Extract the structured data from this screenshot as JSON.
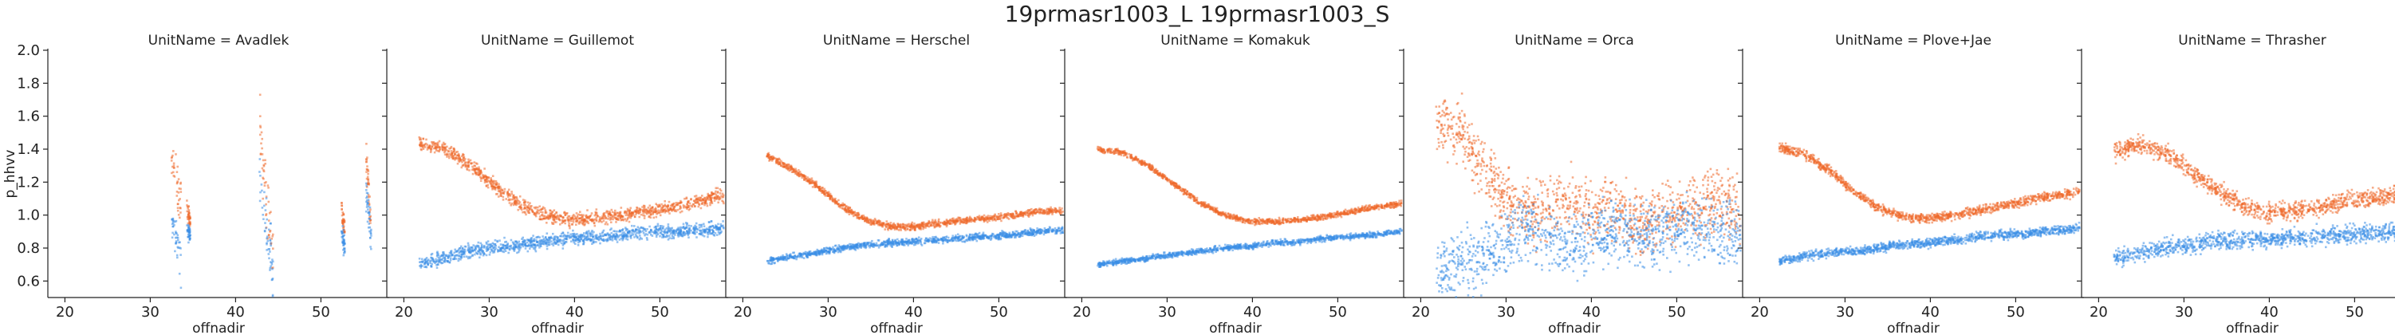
{
  "title": "19prmasr1003_L 19prmasr1003_S",
  "chart_data": {
    "type": "scatter",
    "title": "19prmasr1003_L 19prmasr1003_S",
    "facet_label": "UnitName",
    "xlabel": "offnadir",
    "ylabel": "p_hhvv",
    "xlim": [
      18,
      58
    ],
    "ylim": [
      0.5,
      2.0
    ],
    "xticks": [
      20,
      30,
      40,
      50
    ],
    "yticks": [
      0.6,
      0.8,
      1.0,
      1.2,
      1.4,
      1.6,
      1.8,
      2.0
    ],
    "y_only_first_panel": true,
    "colors": {
      "upper": "#ee6a2c",
      "lower": "#3a8ee6"
    },
    "panels": [
      {
        "title": "UnitName = Avadlek",
        "segments": [
          {
            "x0": 32.5,
            "x1": 33.6,
            "upper": [
              1.35,
              1.05
            ],
            "lower": [
              1.0,
              0.68
            ],
            "spread": 0.18
          },
          {
            "x0": 34.3,
            "x1": 34.7,
            "upper": [
              1.05,
              0.95
            ],
            "lower": [
              0.92,
              0.88
            ],
            "spread": 0.08
          },
          {
            "x0": 42.8,
            "x1": 44.4,
            "upper": [
              1.55,
              0.75
            ],
            "lower": [
              1.3,
              0.6
            ],
            "spread": 0.3
          },
          {
            "x0": 52.4,
            "x1": 52.8,
            "upper": [
              1.05,
              0.9
            ],
            "lower": [
              0.9,
              0.8
            ],
            "spread": 0.1
          },
          {
            "x0": 55.3,
            "x1": 55.9,
            "upper": [
              1.35,
              0.9
            ],
            "lower": [
              1.15,
              0.85
            ],
            "spread": 0.15
          }
        ]
      },
      {
        "title": "UnitName = Guillemot",
        "segments": [
          {
            "x0": 21.8,
            "x1": 57.5,
            "upper": [
              1.44,
              1.4,
              1.3,
              1.17,
              1.06,
              1.0,
              0.97,
              0.98,
              1.0,
              1.02,
              1.05,
              1.08,
              1.12
            ],
            "lower": [
              0.7,
              0.74,
              0.78,
              0.8,
              0.82,
              0.84,
              0.86,
              0.87,
              0.88,
              0.9,
              0.9,
              0.91,
              0.92
            ],
            "spread": 0.06
          }
        ]
      },
      {
        "title": "UnitName = Herschel",
        "segments": [
          {
            "x0": 22.8,
            "x1": 57.5,
            "upper": [
              1.36,
              1.28,
              1.18,
              1.06,
              0.97,
              0.93,
              0.93,
              0.95,
              0.97,
              0.98,
              1.0,
              1.02,
              1.03
            ],
            "lower": [
              0.72,
              0.75,
              0.77,
              0.8,
              0.82,
              0.83,
              0.84,
              0.85,
              0.86,
              0.87,
              0.88,
              0.9,
              0.91
            ],
            "spread": 0.03
          }
        ]
      },
      {
        "title": "UnitName = Komakuk",
        "segments": [
          {
            "x0": 21.8,
            "x1": 57.5,
            "upper": [
              1.4,
              1.38,
              1.3,
              1.19,
              1.08,
              1.0,
              0.96,
              0.96,
              0.97,
              0.99,
              1.02,
              1.05,
              1.07
            ],
            "lower": [
              0.7,
              0.72,
              0.74,
              0.76,
              0.78,
              0.8,
              0.81,
              0.83,
              0.84,
              0.86,
              0.87,
              0.88,
              0.9
            ],
            "spread": 0.025
          }
        ]
      },
      {
        "title": "UnitName = Orca",
        "segments": [
          {
            "x0": 21.8,
            "x1": 57.5,
            "upper": [
              1.55,
              1.5,
              1.25,
              1.05,
              1.0,
              1.1,
              1.0,
              1.05,
              0.95,
              1.0,
              1.05,
              1.1,
              1.0
            ],
            "lower": [
              0.65,
              0.7,
              0.75,
              0.85,
              0.9,
              0.8,
              0.85,
              0.9,
              0.88,
              0.9,
              0.92,
              0.9,
              0.85
            ],
            "spread": 0.28
          }
        ]
      },
      {
        "title": "UnitName = Plove+Jae",
        "segments": [
          {
            "x0": 22.3,
            "x1": 57.5,
            "upper": [
              1.41,
              1.37,
              1.27,
              1.14,
              1.04,
              0.99,
              0.98,
              1.0,
              1.03,
              1.06,
              1.09,
              1.12,
              1.14
            ],
            "lower": [
              0.72,
              0.75,
              0.77,
              0.78,
              0.8,
              0.82,
              0.83,
              0.85,
              0.87,
              0.88,
              0.89,
              0.91,
              0.92
            ],
            "spread": 0.04
          }
        ]
      },
      {
        "title": "UnitName = Thrasher",
        "segments": [
          {
            "x0": 21.8,
            "x1": 57.5,
            "upper": [
              1.38,
              1.43,
              1.38,
              1.27,
              1.16,
              1.06,
              1.01,
              1.02,
              1.05,
              1.08,
              1.1,
              1.12,
              1.14
            ],
            "lower": [
              0.74,
              0.77,
              0.8,
              0.82,
              0.84,
              0.85,
              0.85,
              0.86,
              0.87,
              0.88,
              0.89,
              0.9,
              0.9
            ],
            "spread": 0.08
          }
        ]
      }
    ]
  }
}
